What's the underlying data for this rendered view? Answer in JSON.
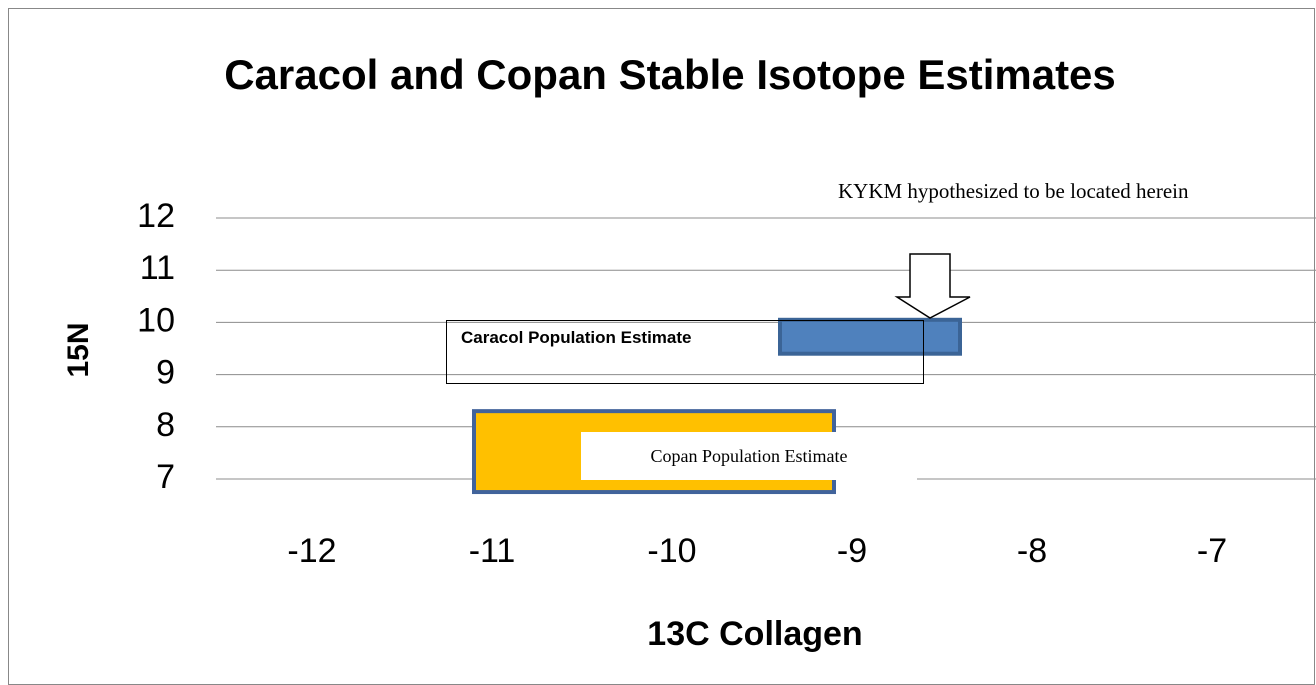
{
  "chart_data": {
    "type": "range",
    "title": "Caracol and Copan Stable Isotope Estimates",
    "x_label": "13C Collagen",
    "y_label": "15N",
    "annotation": "KYKM hypothesized to be located herein",
    "xlim": [
      -12.5,
      -6.5
    ],
    "xticks": [
      -12,
      -11,
      -10,
      -9,
      -8,
      -7
    ],
    "ylim": [
      7,
      12
    ],
    "yticks": [
      7,
      8,
      9,
      10,
      11,
      12
    ],
    "grid": true,
    "series": [
      {
        "name": "Caracol Population Estimate",
        "color": "#4f81bd",
        "x": [
          -9.4,
          -8.4
        ],
        "y": [
          9.4,
          10.05
        ]
      },
      {
        "name": "Copan Population Estimate",
        "color": "#ffc000",
        "x": [
          -11.1,
          -9.1
        ],
        "y": [
          6.75,
          8.3
        ]
      }
    ]
  }
}
